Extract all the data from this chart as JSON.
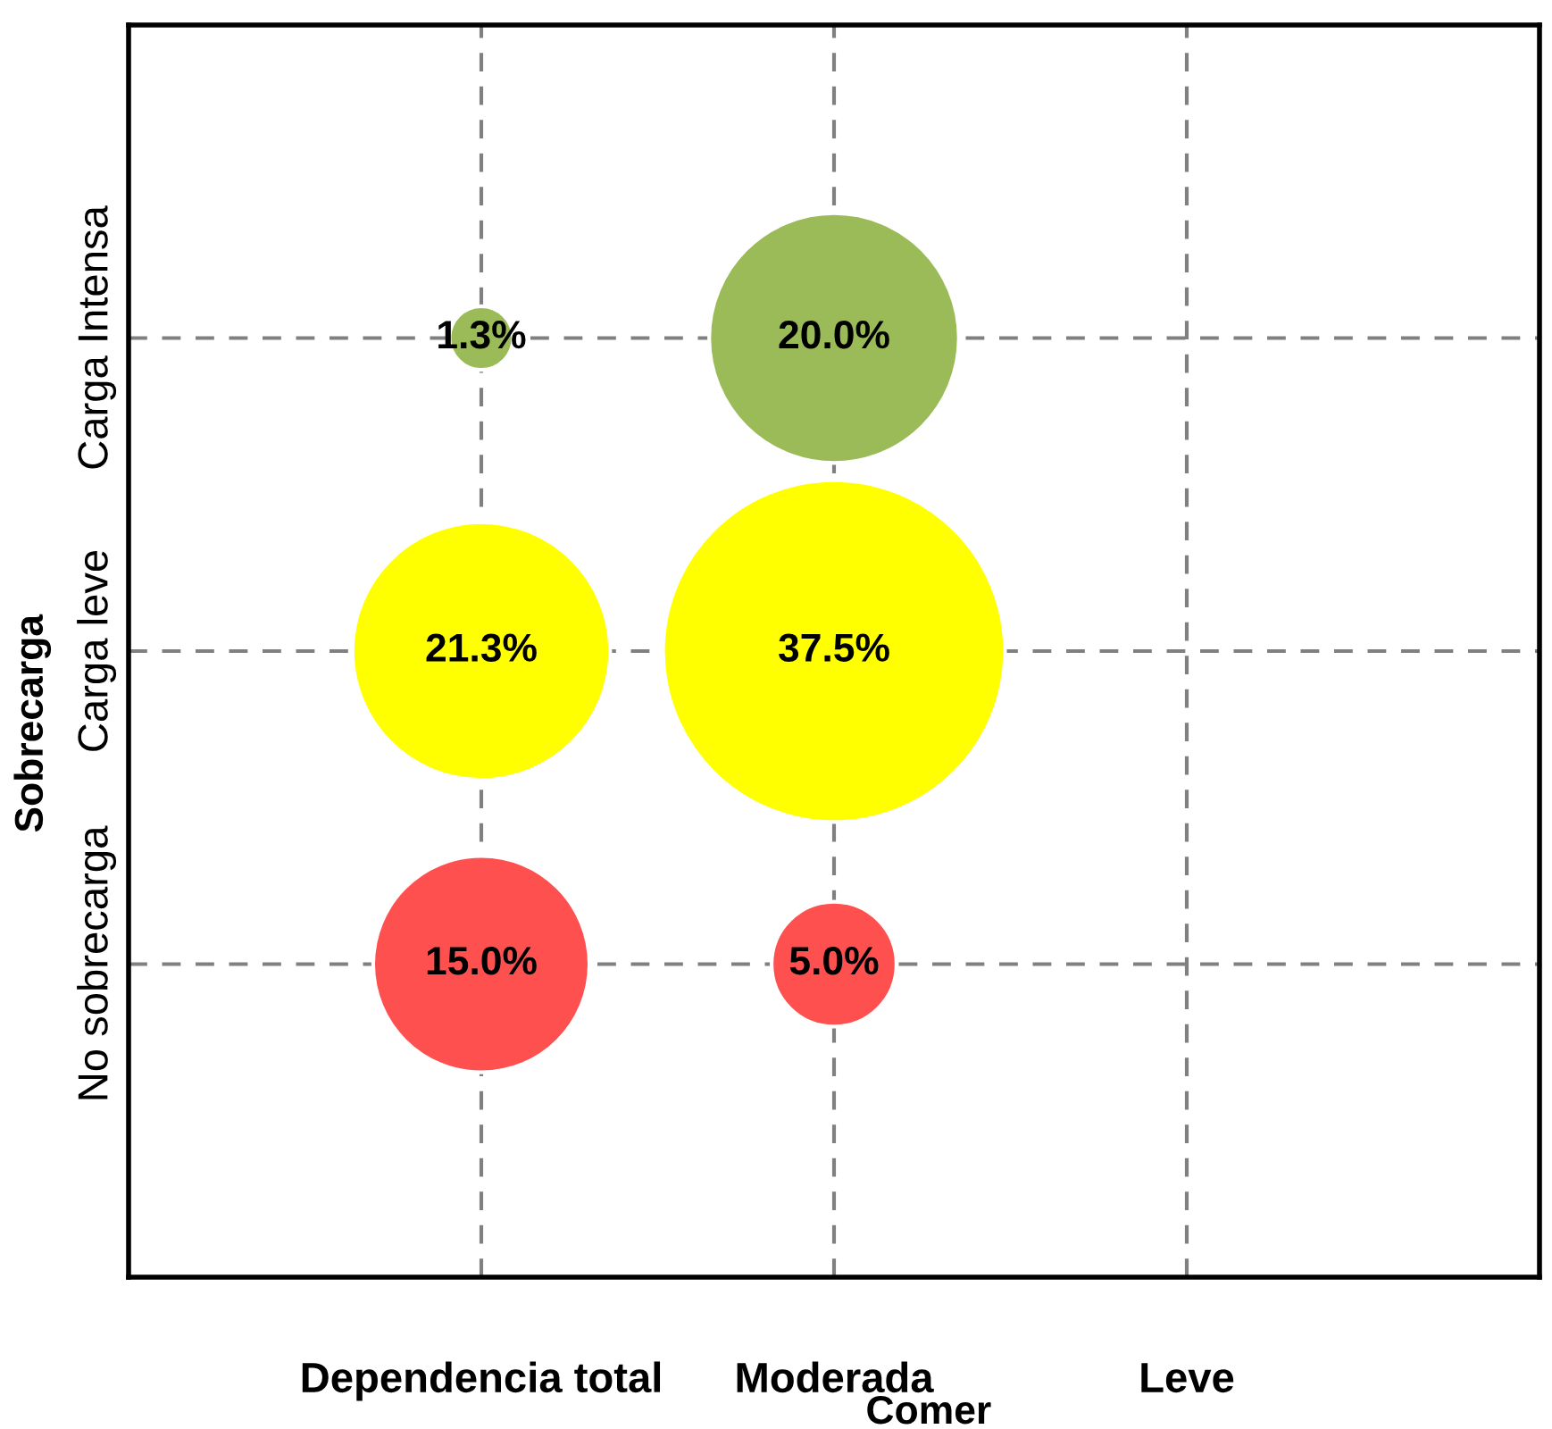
{
  "chart_data": {
    "type": "other",
    "xlabel": "Comer",
    "ylabel": "Sobrecarga",
    "categories": [
      "Dependencia total",
      "Moderada",
      "Leve"
    ],
    "y_categories": [
      "Carga Intensa",
      "Carga leve",
      "No sobrecarga"
    ],
    "series": [
      {
        "color": "#9bbb59",
        "values": [
          1.3,
          20.0,
          null
        ],
        "value_labels": [
          "1.3%",
          "20.0%",
          null
        ]
      },
      {
        "color": "#ffff00",
        "values": [
          21.3,
          37.5,
          null
        ],
        "value_labels": [
          "21.3%",
          "37.5%",
          null
        ]
      },
      {
        "color": "#ff5050",
        "values": [
          15.0,
          5.0,
          null
        ],
        "value_labels": [
          "15.0%",
          "5.0%",
          null
        ]
      }
    ]
  }
}
